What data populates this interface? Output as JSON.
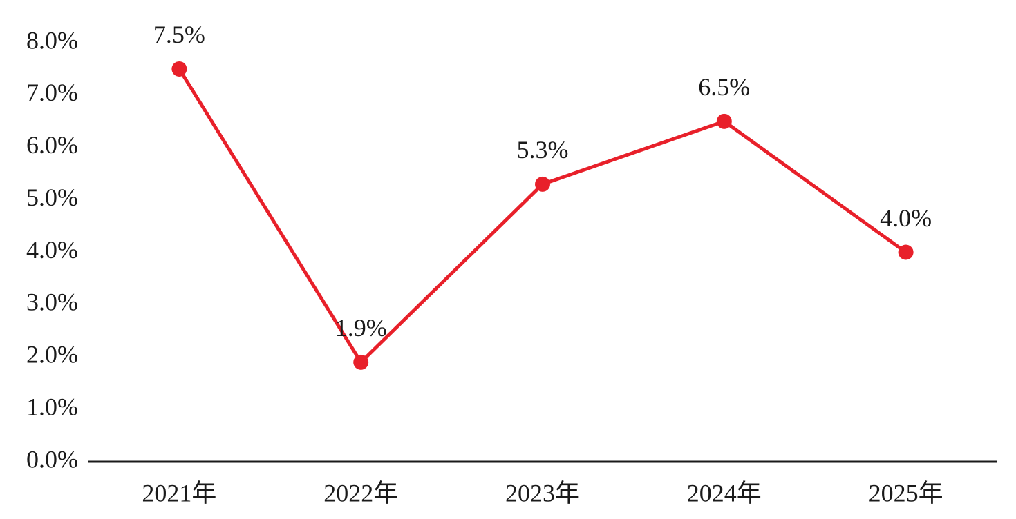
{
  "chart_data": {
    "type": "line",
    "categories": [
      "2021年",
      "2022年",
      "2023年",
      "2024年",
      "2025年"
    ],
    "values": [
      7.5,
      1.9,
      5.3,
      6.5,
      4.0
    ],
    "value_labels": [
      "7.5%",
      "1.9%",
      "5.3%",
      "6.5%",
      "4.0%"
    ],
    "color": "#e8202a",
    "ylim": [
      0,
      8
    ],
    "yticks": [
      {
        "value": 0,
        "label": "0.0%"
      },
      {
        "value": 1,
        "label": "1.0%"
      },
      {
        "value": 2,
        "label": "2.0%"
      },
      {
        "value": 3,
        "label": "3.0%"
      },
      {
        "value": 4,
        "label": "4.0%"
      },
      {
        "value": 5,
        "label": "5.0%"
      },
      {
        "value": 6,
        "label": "6.0%"
      },
      {
        "value": 7,
        "label": "7.0%"
      },
      {
        "value": 8,
        "label": "8.0%"
      }
    ],
    "grid": false
  }
}
